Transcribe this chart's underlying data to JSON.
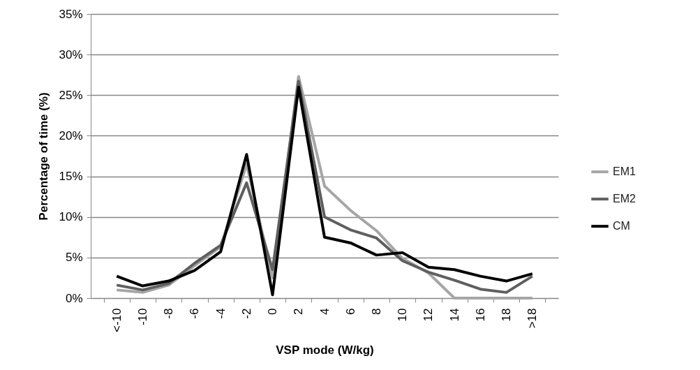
{
  "chart_data": {
    "type": "line",
    "xlabel": "VSP mode (W/kg)",
    "ylabel": "Percentage of time (%)",
    "categories": [
      "<-10",
      "-10",
      "-8",
      "-6",
      "-4",
      "-2",
      "0",
      "2",
      "4",
      "6",
      "8",
      "10",
      "12",
      "14",
      "16",
      "18",
      ">18"
    ],
    "series": [
      {
        "name": "EM1",
        "color": "#a6a6a6",
        "values": [
          1.0,
          0.7,
          1.6,
          4.0,
          6.3,
          16.5,
          2.5,
          27.3,
          13.8,
          10.8,
          8.3,
          4.9,
          3.1,
          0,
          0,
          0,
          0
        ]
      },
      {
        "name": "EM2",
        "color": "#5f5f5f",
        "values": [
          1.6,
          1.0,
          1.8,
          4.3,
          6.5,
          14.2,
          3.5,
          26.7,
          10.0,
          8.4,
          7.4,
          4.6,
          3.2,
          2.2,
          1.1,
          0.7,
          2.7
        ]
      },
      {
        "name": "CM",
        "color": "#000000",
        "values": [
          2.7,
          1.5,
          2.1,
          3.4,
          5.7,
          17.7,
          0.4,
          26.0,
          7.5,
          6.8,
          5.3,
          5.6,
          3.8,
          3.5,
          2.7,
          2.1,
          3.0
        ]
      }
    ],
    "ylim": [
      0,
      35
    ],
    "yticks": [
      {
        "value": 0,
        "label": "0%"
      },
      {
        "value": 5,
        "label": "5%"
      },
      {
        "value": 10,
        "label": "10%"
      },
      {
        "value": 15,
        "label": "15%"
      },
      {
        "value": 20,
        "label": "20%"
      },
      {
        "value": 25,
        "label": "25%"
      },
      {
        "value": 30,
        "label": "30%"
      },
      {
        "value": 35,
        "label": "35%"
      }
    ],
    "grid": "y",
    "legend": "right",
    "marker": "none",
    "line_style": "solid"
  }
}
